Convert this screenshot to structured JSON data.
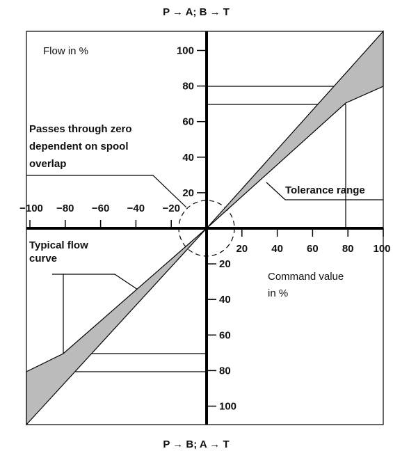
{
  "top_label": "P → A; B → T",
  "bottom_label": "P → B; A → T",
  "y_axis_label": "Flow in %",
  "x_axis_label": [
    "Command value",
    "in %"
  ],
  "annotations": {
    "zero": [
      "Passes through zero",
      "dependent on spool",
      "overlap"
    ],
    "tolerance": "Tolerance range",
    "typical": [
      "Typical flow",
      "curve"
    ]
  },
  "x_ticks_positive": [
    "20",
    "40",
    "60",
    "80",
    "100"
  ],
  "x_ticks_negative": [
    "−20",
    "−40",
    "−60",
    "−80",
    "−100"
  ],
  "y_ticks_positive": [
    "20",
    "40",
    "60",
    "80",
    "100"
  ],
  "y_ticks_negative": [
    "20",
    "40",
    "60",
    "80",
    "100"
  ]
}
